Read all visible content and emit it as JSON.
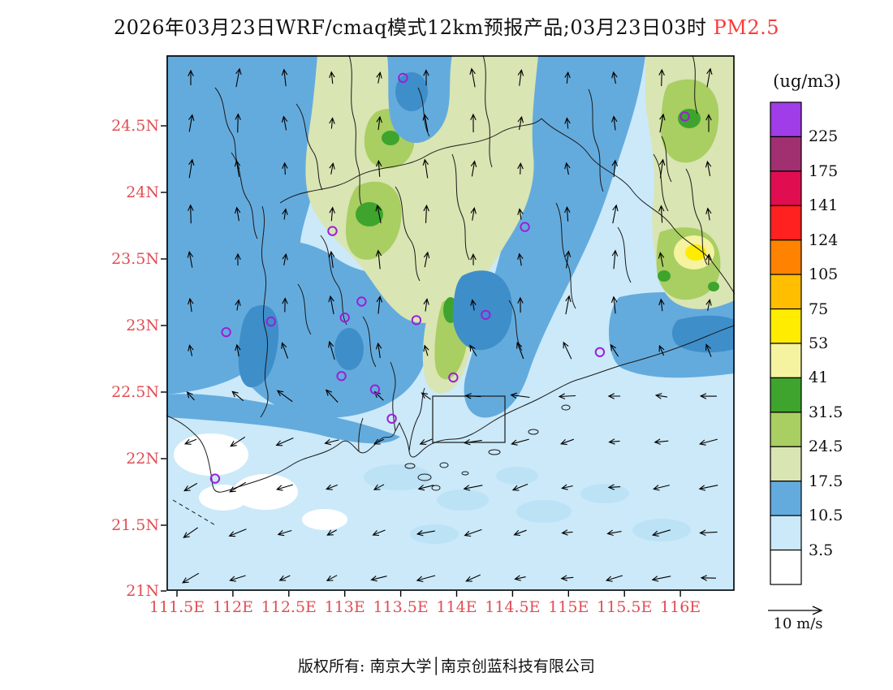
{
  "title": {
    "main": "2026年03月23日WRF/cmaq模式12km预报产品;03月23日03时",
    "highlight": " PM2.5"
  },
  "colors": {
    "axis_tick_label": "#E04F55",
    "title_highlight": "#FB3A3A",
    "station_marker": "#9B1FD8",
    "map_accent_deep_blue": "#3E8ECA",
    "sea_patch": "#BCE2F6",
    "boundary_line": "#1a1a1a"
  },
  "map": {
    "lon_ticks": [
      {
        "label": "111.5E",
        "value": 111.5
      },
      {
        "label": "112E",
        "value": 112
      },
      {
        "label": "112.5E",
        "value": 112.5
      },
      {
        "label": "113E",
        "value": 113
      },
      {
        "label": "113.5E",
        "value": 113.5
      },
      {
        "label": "114E",
        "value": 114
      },
      {
        "label": "114.5E",
        "value": 114.5
      },
      {
        "label": "115E",
        "value": 115
      },
      {
        "label": "115.5E",
        "value": 115.5
      },
      {
        "label": "116E",
        "value": 116
      }
    ],
    "lat_ticks": [
      {
        "label": "24.5N",
        "value": 24.5
      },
      {
        "label": "24N",
        "value": 24
      },
      {
        "label": "23.5N",
        "value": 23.5
      },
      {
        "label": "23N",
        "value": 23
      },
      {
        "label": "22.5N",
        "value": 22.5
      },
      {
        "label": "22N",
        "value": 22
      },
      {
        "label": "21.5N",
        "value": 21.5
      },
      {
        "label": "21N",
        "value": 21
      }
    ]
  },
  "colorbar": {
    "units": "(ug/m3)",
    "labels": [
      "225",
      "175",
      "141",
      "124",
      "105",
      "75",
      "53",
      "41",
      "31.5",
      "24.5",
      "17.5",
      "10.5",
      "3.5"
    ],
    "bands_top_to_bottom": [
      "#A03CE8",
      "#A03070",
      "#E00E50",
      "#FF2020",
      "#FF8200",
      "#FFBE00",
      "#FFEC00",
      "#F5F2A0",
      "#3EA42E",
      "#A9CE62",
      "#D9E5B3",
      "#64ABDD",
      "#CBE9F9",
      "#FFFFFF"
    ]
  },
  "wind_legend": {
    "label": "10 m/s"
  },
  "footer": {
    "text": "版权所有: 南京大学│南京创蓝科技有限公司"
  },
  "chart_data": {
    "type": "heatmap",
    "title": "2026年03月23日WRF/cmaq模式12km预报产品;03月23日03时 PM2.5",
    "variable": "PM2.5",
    "units": "ug/m3",
    "valid_time": "03月23日03时",
    "x_axis": {
      "kind": "longitude",
      "ticks": [
        111.5,
        112,
        112.5,
        113,
        113.5,
        114,
        114.5,
        115,
        115.5,
        116
      ],
      "range": [
        111.4,
        116.5
      ]
    },
    "y_axis": {
      "kind": "latitude",
      "ticks": [
        21,
        21.5,
        22,
        22.5,
        23,
        23.5,
        24,
        24.5
      ],
      "range": [
        21.0,
        25.0
      ]
    },
    "contour_levels": [
      3.5,
      10.5,
      17.5,
      24.5,
      31.5,
      41,
      53,
      75,
      105,
      124,
      141,
      175,
      225
    ],
    "palette_low_to_high": [
      "#FFFFFF",
      "#CBE9F9",
      "#64ABDD",
      "#D9E5B3",
      "#A9CE62",
      "#3EA42E",
      "#F5F2A0",
      "#FFEC00",
      "#FFBE00",
      "#FF8200",
      "#FF2020",
      "#E00E50",
      "#A03070",
      "#A03CE8"
    ],
    "wind_reference": {
      "speed": 10,
      "units": "m/s"
    },
    "stations_lon_lat": [
      [
        113.52,
        24.86
      ],
      [
        116.04,
        24.57
      ],
      [
        112.89,
        23.71
      ],
      [
        114.61,
        23.74
      ],
      [
        113.15,
        23.18
      ],
      [
        113.0,
        23.06
      ],
      [
        111.94,
        22.95
      ],
      [
        112.34,
        23.03
      ],
      [
        113.64,
        23.04
      ],
      [
        114.26,
        23.08
      ],
      [
        115.28,
        22.8
      ],
      [
        112.97,
        22.62
      ],
      [
        113.27,
        22.52
      ],
      [
        113.97,
        22.61
      ],
      [
        113.42,
        22.3
      ],
      [
        111.84,
        21.85
      ]
    ],
    "field_regions": [
      {
        "area": "northern inland (23.5N-25N)",
        "pm25": "17.5-41 ug/m3 (pale to dark green)"
      },
      {
        "area": "northeast hotspot near 115.8E 23.6N",
        "pm25": "41-75 ug/m3 (pale yellow to yellow)"
      },
      {
        "area": "central and western inland / Pearl River Delta",
        "pm25": "10.5-17.5 ug/m3 (medium blue)"
      },
      {
        "area": "southern offshore waters",
        "pm25": "3.5-10.5 ug/m3 (light blue)"
      },
      {
        "area": "patches off the southwest coast",
        "pm25": "below 3.5 ug/m3 (white)"
      }
    ],
    "wind_field": {
      "inland": "southerly flow, arrows point north",
      "offshore": "northeasterly flow, arrows point southwest",
      "reference": "10 m/s"
    }
  }
}
